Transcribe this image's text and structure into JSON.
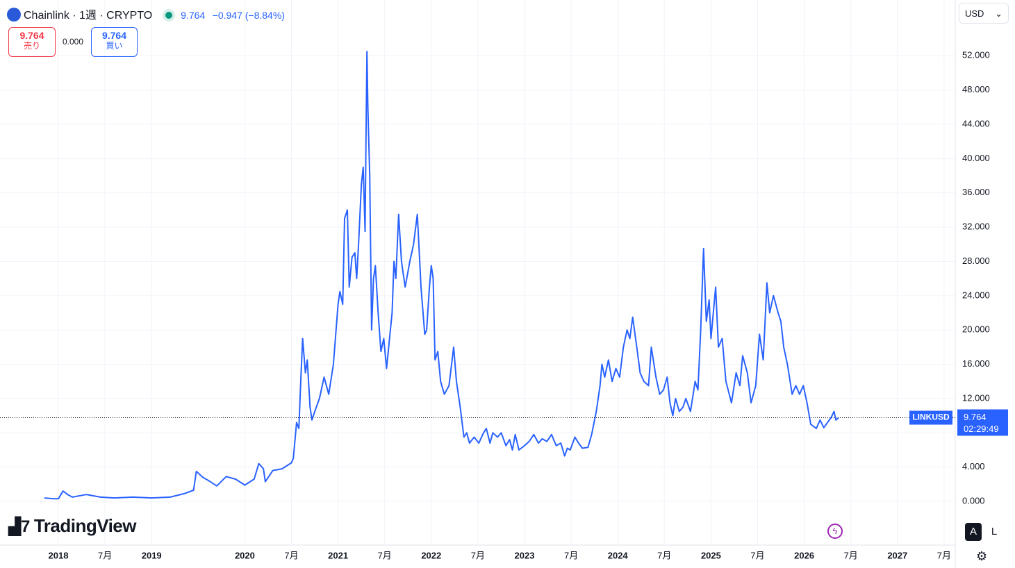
{
  "header": {
    "symbol": "Chainlink · 1週 · CRYPTO",
    "price": "9.764",
    "change": "−0.947 (−8.84%)",
    "sell_price": "9.764",
    "sell_label": "売り",
    "spread": "0.000",
    "buy_price": "9.764",
    "buy_label": "買い",
    "currency": "USD",
    "logo": "TradingView",
    "button_auto": "A",
    "button_log": "L"
  },
  "chart_data": {
    "type": "line",
    "series_name": "LINKUSD",
    "color": "#2962ff",
    "last_price": 9.764,
    "countdown": "02:29:49",
    "x": [
      2017.85,
      2017.95,
      2018.0,
      2018.05,
      2018.1,
      2018.15,
      2018.3,
      2018.45,
      2018.6,
      2018.8,
      2019.0,
      2019.2,
      2019.35,
      2019.45,
      2019.48,
      2019.55,
      2019.6,
      2019.7,
      2019.8,
      2019.9,
      2020.0,
      2020.1,
      2020.15,
      2020.2,
      2020.22,
      2020.3,
      2020.4,
      2020.5,
      2020.52,
      2020.555,
      2020.58,
      2020.6,
      2020.62,
      2020.65,
      2020.67,
      2020.7,
      2020.72,
      2020.75,
      2020.8,
      2020.85,
      2020.9,
      2020.95,
      2021.0,
      2021.02,
      2021.05,
      2021.07,
      2021.1,
      2021.12,
      2021.15,
      2021.18,
      2021.2,
      2021.22,
      2021.25,
      2021.27,
      2021.29,
      2021.3,
      2021.31,
      2021.32,
      2021.34,
      2021.36,
      2021.38,
      2021.4,
      2021.43,
      2021.46,
      2021.49,
      2021.52,
      2021.58,
      2021.6,
      2021.62,
      2021.65,
      2021.68,
      2021.72,
      2021.77,
      2021.81,
      2021.85,
      2021.89,
      2021.93,
      2021.95,
      2021.98,
      2022.0,
      2022.02,
      2022.04,
      2022.07,
      2022.1,
      2022.14,
      2022.19,
      2022.24,
      2022.27,
      2022.31,
      2022.35,
      2022.38,
      2022.41,
      2022.46,
      2022.51,
      2022.56,
      2022.59,
      2022.63,
      2022.66,
      2022.71,
      2022.75,
      2022.8,
      2022.84,
      2022.87,
      2022.9,
      2022.94,
      2023.0,
      2023.05,
      2023.1,
      2023.15,
      2023.19,
      2023.24,
      2023.29,
      2023.34,
      2023.39,
      2023.43,
      2023.46,
      2023.49,
      2023.54,
      2023.58,
      2023.62,
      2023.68,
      2023.72,
      2023.77,
      2023.81,
      2023.83,
      2023.86,
      2023.9,
      2023.94,
      2023.98,
      2024.02,
      2024.06,
      2024.1,
      2024.13,
      2024.16,
      2024.21,
      2024.24,
      2024.28,
      2024.33,
      2024.36,
      2024.41,
      2024.45,
      2024.49,
      2024.53,
      2024.56,
      2024.59,
      2024.62,
      2024.66,
      2024.7,
      2024.73,
      2024.78,
      2024.83,
      2024.86,
      2024.89,
      2024.92,
      2024.95,
      2024.98,
      2025.0,
      2025.05,
      2025.08,
      2025.12,
      2025.16,
      2025.22,
      2025.27,
      2025.31,
      2025.34,
      2025.39,
      2025.43,
      2025.48,
      2025.52,
      2025.56,
      2025.6,
      2025.63,
      2025.67,
      2025.72,
      2025.75,
      2025.78,
      2025.82,
      2025.87,
      2025.91,
      2025.95,
      2025.99,
      2026.03,
      2026.07,
      2026.13,
      2026.17,
      2026.21,
      2026.25,
      2026.29,
      2026.32,
      2026.34,
      2026.37
    ],
    "values": [
      0.4,
      0.3,
      0.3,
      1.2,
      0.8,
      0.5,
      0.8,
      0.5,
      0.4,
      0.5,
      0.4,
      0.5,
      0.9,
      1.3,
      3.5,
      2.8,
      2.5,
      1.8,
      2.9,
      2.6,
      1.9,
      2.6,
      4.4,
      3.8,
      2.3,
      3.6,
      3.8,
      4.5,
      5.0,
      9.2,
      8.5,
      14,
      19,
      15,
      16.5,
      11,
      9.5,
      10.5,
      12,
      14.5,
      12.5,
      16,
      23,
      24.5,
      23,
      33,
      34,
      25,
      28.5,
      29,
      26,
      30,
      37,
      39,
      31.5,
      43,
      52.5,
      46,
      38,
      20,
      26,
      27.5,
      22,
      17.5,
      19,
      15.5,
      22,
      28,
      26,
      33.5,
      28,
      25,
      28,
      30,
      33.5,
      25,
      19.5,
      20,
      25,
      27.5,
      26,
      16.5,
      17.5,
      14,
      12.5,
      13.5,
      18,
      14,
      11,
      7.5,
      8,
      6.8,
      7.5,
      6.8,
      8.0,
      8.5,
      6.8,
      8,
      7.5,
      8,
      6.5,
      7.2,
      6.0,
      7.8,
      6.0,
      6.5,
      7.0,
      7.8,
      6.8,
      7.3,
      7.0,
      7.8,
      6.5,
      6.8,
      5.3,
      6.2,
      6.0,
      7.5,
      6.8,
      6.2,
      6.3,
      7.8,
      10.5,
      13.5,
      16,
      14.5,
      16.5,
      14.0,
      15.5,
      14.5,
      18,
      20,
      19,
      21.5,
      17.5,
      15,
      14,
      13.5,
      18,
      14.5,
      12.5,
      13,
      14.5,
      11.5,
      10,
      12,
      10.5,
      11.0,
      12,
      10.5,
      14,
      13,
      20,
      29.5,
      21,
      23.5,
      19,
      25,
      18,
      19,
      14,
      11.5,
      15.0,
      13.5,
      17,
      15,
      11.5,
      13.5,
      19.5,
      16.5,
      25.5,
      22,
      24,
      22,
      21,
      18,
      16,
      12.5,
      13.5,
      12.5,
      13.5,
      11.5,
      9.0,
      8.5,
      9.5,
      8.6,
      9.2,
      9.8,
      10.5,
      9.5,
      9.764
    ],
    "xlim": [
      2017.374,
      2027.62
    ],
    "ylim": [
      -5.1,
      58.5
    ],
    "xticks": [
      2018,
      {
        "value": 2018.5,
        "label": "7月"
      },
      2019,
      2020,
      {
        "value": 2020.5,
        "label": "7月"
      },
      2021,
      {
        "value": 2021.5,
        "label": "7月"
      },
      2022,
      {
        "value": 2022.5,
        "label": "7月"
      },
      2023,
      {
        "value": 2023.5,
        "label": "7月"
      },
      2024,
      {
        "value": 2024.5,
        "label": "7月"
      },
      2025,
      {
        "value": 2025.5,
        "label": "7月"
      },
      2026,
      {
        "value": 2026.5,
        "label": "7月"
      },
      2027,
      {
        "value": 2027.5,
        "label": "7月"
      }
    ],
    "yticks": [
      {
        "value": 0,
        "label": "0.000"
      },
      {
        "value": 4,
        "label": "4.000"
      },
      {
        "value": 8,
        "label": "8.000"
      },
      {
        "value": 12,
        "label": "12.000"
      },
      {
        "value": 16,
        "label": "16.000"
      },
      {
        "value": 20,
        "label": "20.000"
      },
      {
        "value": 24,
        "label": "24.000"
      },
      {
        "value": 28,
        "label": "28.000"
      },
      {
        "value": 32,
        "label": "32.000"
      },
      {
        "value": 36,
        "label": "36.000"
      },
      {
        "value": 40,
        "label": "40.000"
      },
      {
        "value": 44,
        "label": "44.000"
      },
      {
        "value": 48,
        "label": "48.000"
      },
      {
        "value": 52,
        "label": "52.000"
      }
    ],
    "grid": true
  }
}
